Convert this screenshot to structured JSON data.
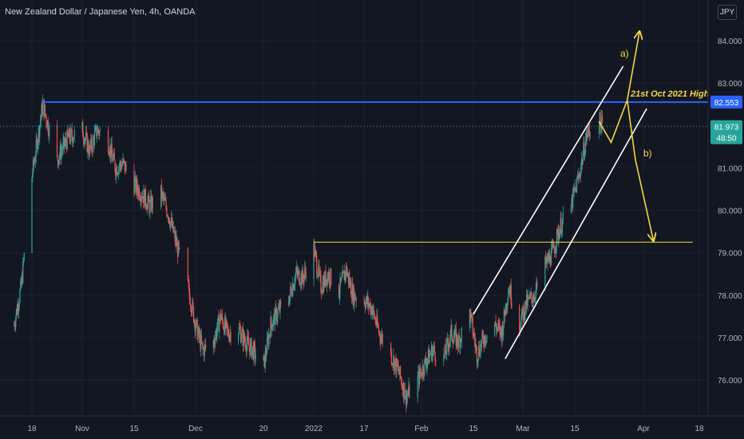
{
  "header": {
    "symbol_title": "New Zealand Dollar / Japanese Yen, 4h, OANDA",
    "currency_button": "JPY"
  },
  "price_scale": {
    "high_label": "82.553",
    "last_price": "81.973",
    "countdown": "48:50"
  },
  "colors": {
    "background": "#131722",
    "up_candle": "#26a69a",
    "down_candle": "#ef5350",
    "high_line": "#2962ff",
    "annotation": "#f5d742",
    "channel": "#ffffff",
    "last_price_bg": "#26a69a"
  },
  "annotations": {
    "high_text": "21st Oct 2021 High",
    "wave_a": "a)",
    "wave_b": "b)"
  },
  "chart_data": {
    "type": "candlestick",
    "title": "New Zealand Dollar / Japanese Yen, 4h, OANDA",
    "ylim": [
      75.2,
      84.6
    ],
    "y_ticks": [
      "76.000",
      "77.000",
      "78.000",
      "79.000",
      "80.000",
      "81.000",
      "82.000",
      "83.000",
      "84.000"
    ],
    "y_tick_values": [
      76,
      77,
      78,
      79,
      80,
      81,
      82,
      83,
      84
    ],
    "x_ticks": [
      "18",
      "Nov",
      "15",
      "Dec",
      "20",
      "2022",
      "17",
      "Feb",
      "15",
      "Mar",
      "15",
      "Apr",
      "18"
    ],
    "x_tick_dates": [
      "2021-10-18",
      "2021-11-01",
      "2021-11-15",
      "2021-12-01",
      "2021-12-20",
      "2022-01-03",
      "2022-01-17",
      "2022-02-01",
      "2022-02-15",
      "2022-03-01",
      "2022-03-15",
      "2022-04-01",
      "2022-04-18"
    ],
    "price_path": [
      [
        "2021-10-13",
        77.3
      ],
      [
        "2021-10-15",
        78.2
      ],
      [
        "2021-10-18",
        80.8
      ],
      [
        "2021-10-21",
        82.5
      ],
      [
        "2021-10-25",
        81.2
      ],
      [
        "2021-10-28",
        81.7
      ],
      [
        "2021-11-01",
        81.9
      ],
      [
        "2021-11-03",
        81.4
      ],
      [
        "2021-11-05",
        81.9
      ],
      [
        "2021-11-08",
        81.6
      ],
      [
        "2021-11-10",
        81.0
      ],
      [
        "2021-11-12",
        81.1
      ],
      [
        "2021-11-15",
        80.6
      ],
      [
        "2021-11-17",
        80.4
      ],
      [
        "2021-11-19",
        80.1
      ],
      [
        "2021-11-22",
        80.4
      ],
      [
        "2021-11-24",
        79.9
      ],
      [
        "2021-11-26",
        79.2
      ],
      [
        "2021-11-29",
        78.2
      ],
      [
        "2021-12-01",
        77.3
      ],
      [
        "2021-12-03",
        76.7
      ],
      [
        "2021-12-06",
        76.9
      ],
      [
        "2021-12-08",
        77.5
      ],
      [
        "2021-12-10",
        77.1
      ],
      [
        "2021-12-13",
        77.2
      ],
      [
        "2021-12-15",
        76.9
      ],
      [
        "2021-12-17",
        76.7
      ],
      [
        "2021-12-20",
        76.3
      ],
      [
        "2021-12-22",
        77.3
      ],
      [
        "2021-12-24",
        77.6
      ],
      [
        "2021-12-27",
        77.9
      ],
      [
        "2021-12-29",
        78.5
      ],
      [
        "2021-12-31",
        78.4
      ],
      [
        "2022-01-03",
        79.1
      ],
      [
        "2022-01-05",
        78.2
      ],
      [
        "2022-01-07",
        78.5
      ],
      [
        "2022-01-10",
        78.1
      ],
      [
        "2022-01-12",
        78.6
      ],
      [
        "2022-01-14",
        78.0
      ],
      [
        "2022-01-17",
        77.9
      ],
      [
        "2022-01-19",
        77.7
      ],
      [
        "2022-01-21",
        77.1
      ],
      [
        "2022-01-24",
        76.6
      ],
      [
        "2022-01-26",
        76.2
      ],
      [
        "2022-01-28",
        75.6
      ],
      [
        "2022-01-31",
        76.0
      ],
      [
        "2022-02-02",
        76.4
      ],
      [
        "2022-02-04",
        76.7
      ],
      [
        "2022-02-07",
        76.5
      ],
      [
        "2022-02-09",
        77.1
      ],
      [
        "2022-02-11",
        76.9
      ],
      [
        "2022-02-14",
        77.6
      ],
      [
        "2022-02-16",
        76.6
      ],
      [
        "2022-02-18",
        77.0
      ],
      [
        "2022-02-21",
        77.3
      ],
      [
        "2022-02-23",
        77.1
      ],
      [
        "2022-02-25",
        78.2
      ],
      [
        "2022-02-28",
        77.3
      ],
      [
        "2022-03-02",
        77.8
      ],
      [
        "2022-03-04",
        78.0
      ],
      [
        "2022-03-07",
        78.7
      ],
      [
        "2022-03-09",
        79.0
      ],
      [
        "2022-03-11",
        79.6
      ],
      [
        "2022-03-14",
        80.1
      ],
      [
        "2022-03-16",
        80.8
      ],
      [
        "2022-03-18",
        81.8
      ],
      [
        "2022-03-21",
        82.1
      ],
      [
        "2022-03-22",
        81.97
      ]
    ],
    "horizontal_lines": [
      {
        "label": "82.553",
        "value": 82.553,
        "color": "#2962ff"
      },
      {
        "label": "",
        "value": 79.25,
        "color": "#f5d742",
        "from": "2022-01-03",
        "to": "2022-04-16"
      }
    ],
    "projection_path": [
      [
        "2022-03-21",
        82.1
      ],
      [
        "2022-03-24",
        81.6
      ],
      [
        "2022-03-28",
        82.6
      ],
      [
        "2022-03-30",
        81.2
      ],
      [
        "2022-04-04",
        79.3
      ]
    ],
    "wave_a_arrow": [
      [
        "2022-03-28",
        82.6
      ],
      [
        "2022-03-31",
        84.2
      ]
    ],
    "channel": [
      [
        [
          "2022-02-15",
          77.55
        ],
        [
          "2022-03-27",
          83.4
        ]
      ],
      [
        [
          "2022-02-24",
          76.5
        ],
        [
          "2022-04-02",
          82.4
        ]
      ]
    ],
    "last_price": 81.973
  }
}
